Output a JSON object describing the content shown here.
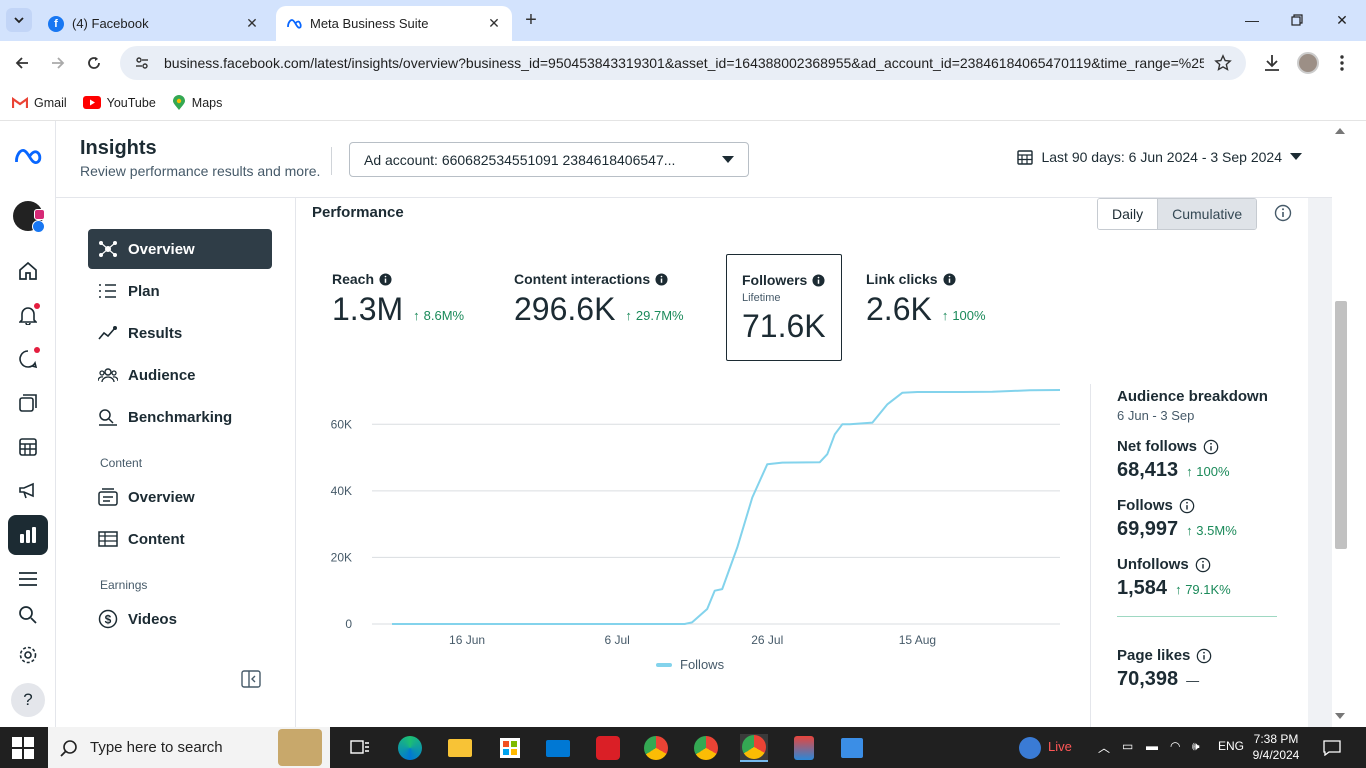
{
  "browser": {
    "tabs": [
      {
        "title": "(4) Facebook",
        "active": false
      },
      {
        "title": "Meta Business Suite",
        "active": true
      }
    ],
    "url": "business.facebook.com/latest/insights/overview?business_id=950453843319301&asset_id=164388002368955&ad_account_id=23846184065470119&time_range=%25...",
    "bookmarks": [
      "Gmail",
      "YouTube",
      "Maps"
    ]
  },
  "header": {
    "title": "Insights",
    "subtitle": "Review performance results and more.",
    "ad_account": "Ad account: 660682534551091 2384618406547...",
    "date_range": "Last 90 days: 6 Jun 2024 - 3 Sep 2024"
  },
  "nav": {
    "items": [
      "Overview",
      "Plan",
      "Results",
      "Audience",
      "Benchmarking"
    ],
    "content_section": "Content",
    "content_items": [
      "Overview",
      "Content"
    ],
    "earnings_section": "Earnings",
    "earnings_items": [
      "Videos"
    ]
  },
  "performance": {
    "title": "Performance",
    "toggle": [
      "Daily",
      "Cumulative"
    ],
    "metrics": [
      {
        "label": "Reach",
        "value": "1.3M",
        "delta": "8.6M%"
      },
      {
        "label": "Content interactions",
        "value": "296.6K",
        "delta": "29.7M%"
      },
      {
        "label": "Followers",
        "sub": "Lifetime",
        "value": "71.6K"
      },
      {
        "label": "Link clicks",
        "value": "2.6K",
        "delta": "100%"
      }
    ],
    "legend": "Follows"
  },
  "breakdown": {
    "title": "Audience breakdown",
    "range": "6 Jun - 3 Sep",
    "items": [
      {
        "label": "Net follows",
        "value": "68,413",
        "delta": "100%"
      },
      {
        "label": "Follows",
        "value": "69,997",
        "delta": "3.5M%"
      },
      {
        "label": "Unfollows",
        "value": "1,584",
        "delta": "79.1K%"
      },
      {
        "label": "Page likes",
        "value": "70,398",
        "delta": "—"
      }
    ]
  },
  "chart_data": {
    "type": "line",
    "title": "",
    "xlabel": "",
    "ylabel": "",
    "ylim": [
      0,
      70000
    ],
    "yticks": [
      0,
      20000,
      40000,
      60000
    ],
    "ytick_labels": [
      "0",
      "20K",
      "40K",
      "60K"
    ],
    "xtick_labels": [
      "16 Jun",
      "6 Jul",
      "26 Jul",
      "15 Aug"
    ],
    "xtick_days": [
      10,
      30,
      50,
      70
    ],
    "series": [
      {
        "name": "Follows",
        "color": "#83d3ec",
        "x": [
          0,
          10,
          20,
          30,
          39,
          40,
          42,
          43,
          44,
          46,
          48,
          50,
          52,
          57,
          58,
          59,
          60,
          61,
          64,
          66,
          68,
          70,
          76,
          80,
          85,
          89
        ],
        "y": [
          0,
          0,
          0,
          0,
          0,
          500,
          4500,
          10000,
          10500,
          23000,
          38000,
          48000,
          48500,
          48600,
          51000,
          57000,
          60000,
          60000,
          60500,
          66000,
          69500,
          69700,
          69700,
          69800,
          70200,
          70300
        ]
      }
    ]
  },
  "taskbar": {
    "search_placeholder": "Type here to search",
    "live": "Live",
    "lang": "ENG",
    "time": "7:38 PM",
    "date": "9/4/2024"
  }
}
